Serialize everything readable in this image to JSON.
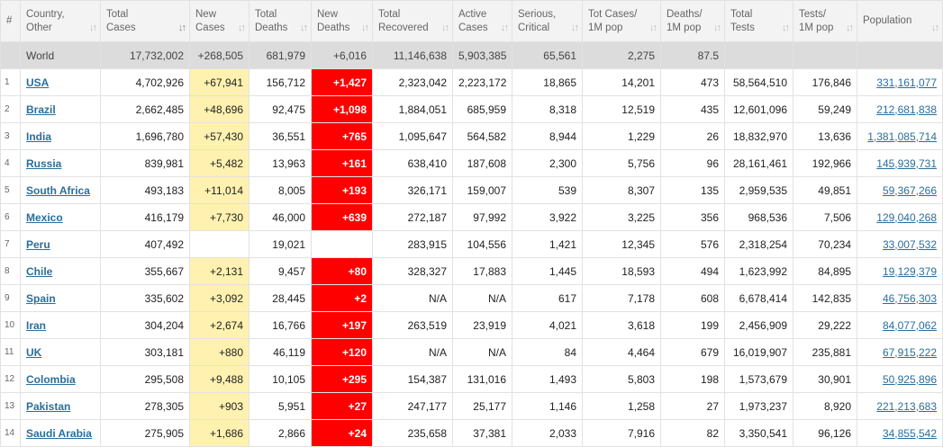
{
  "headers": [
    {
      "l1": "#",
      "l2": "",
      "sort": false
    },
    {
      "l1": "Country,",
      "l2": "Other",
      "sort": true
    },
    {
      "l1": "Total",
      "l2": "Cases",
      "sort": true,
      "active": true
    },
    {
      "l1": "New",
      "l2": "Cases",
      "sort": true
    },
    {
      "l1": "Total",
      "l2": "Deaths",
      "sort": true
    },
    {
      "l1": "New",
      "l2": "Deaths",
      "sort": true
    },
    {
      "l1": "Total",
      "l2": "Recovered",
      "sort": true
    },
    {
      "l1": "Active",
      "l2": "Cases",
      "sort": true
    },
    {
      "l1": "Serious,",
      "l2": "Critical",
      "sort": true
    },
    {
      "l1": "Tot Cases/",
      "l2": "1M pop",
      "sort": true
    },
    {
      "l1": "Deaths/",
      "l2": "1M pop",
      "sort": true
    },
    {
      "l1": "Total",
      "l2": "Tests",
      "sort": true
    },
    {
      "l1": "Tests/",
      "l2": "1M pop",
      "sort": true
    },
    {
      "l1": "Population",
      "l2": "",
      "sort": true
    }
  ],
  "world": {
    "country": "World",
    "total_cases": "17,732,002",
    "new_cases": "+268,505",
    "total_deaths": "681,979",
    "new_deaths": "+6,016",
    "total_recovered": "11,146,638",
    "active_cases": "5,903,385",
    "serious": "65,561",
    "cases_per_1m": "2,275",
    "deaths_per_1m": "87.5",
    "total_tests": "",
    "tests_per_1m": "",
    "population": ""
  },
  "rows": [
    {
      "idx": "1",
      "country": "USA",
      "total_cases": "4,702,926",
      "new_cases": "+67,941",
      "total_deaths": "156,712",
      "new_deaths": "+1,427",
      "total_recovered": "2,323,042",
      "active_cases": "2,223,172",
      "serious": "18,865",
      "cases_per_1m": "14,201",
      "deaths_per_1m": "473",
      "total_tests": "58,564,510",
      "tests_per_1m": "176,846",
      "population": "331,161,077"
    },
    {
      "idx": "2",
      "country": "Brazil",
      "total_cases": "2,662,485",
      "new_cases": "+48,696",
      "total_deaths": "92,475",
      "new_deaths": "+1,098",
      "total_recovered": "1,884,051",
      "active_cases": "685,959",
      "serious": "8,318",
      "cases_per_1m": "12,519",
      "deaths_per_1m": "435",
      "total_tests": "12,601,096",
      "tests_per_1m": "59,249",
      "population": "212,681,838"
    },
    {
      "idx": "3",
      "country": "India",
      "total_cases": "1,696,780",
      "new_cases": "+57,430",
      "total_deaths": "36,551",
      "new_deaths": "+765",
      "total_recovered": "1,095,647",
      "active_cases": "564,582",
      "serious": "8,944",
      "cases_per_1m": "1,229",
      "deaths_per_1m": "26",
      "total_tests": "18,832,970",
      "tests_per_1m": "13,636",
      "population": "1,381,085,714"
    },
    {
      "idx": "4",
      "country": "Russia",
      "total_cases": "839,981",
      "new_cases": "+5,482",
      "total_deaths": "13,963",
      "new_deaths": "+161",
      "total_recovered": "638,410",
      "active_cases": "187,608",
      "serious": "2,300",
      "cases_per_1m": "5,756",
      "deaths_per_1m": "96",
      "total_tests": "28,161,461",
      "tests_per_1m": "192,966",
      "population": "145,939,731"
    },
    {
      "idx": "5",
      "country": "South Africa",
      "total_cases": "493,183",
      "new_cases": "+11,014",
      "total_deaths": "8,005",
      "new_deaths": "+193",
      "total_recovered": "326,171",
      "active_cases": "159,007",
      "serious": "539",
      "cases_per_1m": "8,307",
      "deaths_per_1m": "135",
      "total_tests": "2,959,535",
      "tests_per_1m": "49,851",
      "population": "59,367,266"
    },
    {
      "idx": "6",
      "country": "Mexico",
      "total_cases": "416,179",
      "new_cases": "+7,730",
      "total_deaths": "46,000",
      "new_deaths": "+639",
      "total_recovered": "272,187",
      "active_cases": "97,992",
      "serious": "3,922",
      "cases_per_1m": "3,225",
      "deaths_per_1m": "356",
      "total_tests": "968,536",
      "tests_per_1m": "7,506",
      "population": "129,040,268"
    },
    {
      "idx": "7",
      "country": "Peru",
      "total_cases": "407,492",
      "new_cases": "",
      "total_deaths": "19,021",
      "new_deaths": "",
      "total_recovered": "283,915",
      "active_cases": "104,556",
      "serious": "1,421",
      "cases_per_1m": "12,345",
      "deaths_per_1m": "576",
      "total_tests": "2,318,254",
      "tests_per_1m": "70,234",
      "population": "33,007,532"
    },
    {
      "idx": "8",
      "country": "Chile",
      "total_cases": "355,667",
      "new_cases": "+2,131",
      "total_deaths": "9,457",
      "new_deaths": "+80",
      "total_recovered": "328,327",
      "active_cases": "17,883",
      "serious": "1,445",
      "cases_per_1m": "18,593",
      "deaths_per_1m": "494",
      "total_tests": "1,623,992",
      "tests_per_1m": "84,895",
      "population": "19,129,379"
    },
    {
      "idx": "9",
      "country": "Spain",
      "total_cases": "335,602",
      "new_cases": "+3,092",
      "total_deaths": "28,445",
      "new_deaths": "+2",
      "total_recovered": "N/A",
      "active_cases": "N/A",
      "serious": "617",
      "cases_per_1m": "7,178",
      "deaths_per_1m": "608",
      "total_tests": "6,678,414",
      "tests_per_1m": "142,835",
      "population": "46,756,303"
    },
    {
      "idx": "10",
      "country": "Iran",
      "total_cases": "304,204",
      "new_cases": "+2,674",
      "total_deaths": "16,766",
      "new_deaths": "+197",
      "total_recovered": "263,519",
      "active_cases": "23,919",
      "serious": "4,021",
      "cases_per_1m": "3,618",
      "deaths_per_1m": "199",
      "total_tests": "2,456,909",
      "tests_per_1m": "29,222",
      "population": "84,077,062"
    },
    {
      "idx": "11",
      "country": "UK",
      "total_cases": "303,181",
      "new_cases": "+880",
      "total_deaths": "46,119",
      "new_deaths": "+120",
      "total_recovered": "N/A",
      "active_cases": "N/A",
      "serious": "84",
      "cases_per_1m": "4,464",
      "deaths_per_1m": "679",
      "total_tests": "16,019,907",
      "tests_per_1m": "235,881",
      "population": "67,915,222"
    },
    {
      "idx": "12",
      "country": "Colombia",
      "total_cases": "295,508",
      "new_cases": "+9,488",
      "total_deaths": "10,105",
      "new_deaths": "+295",
      "total_recovered": "154,387",
      "active_cases": "131,016",
      "serious": "1,493",
      "cases_per_1m": "5,803",
      "deaths_per_1m": "198",
      "total_tests": "1,573,679",
      "tests_per_1m": "30,901",
      "population": "50,925,896"
    },
    {
      "idx": "13",
      "country": "Pakistan",
      "total_cases": "278,305",
      "new_cases": "+903",
      "total_deaths": "5,951",
      "new_deaths": "+27",
      "total_recovered": "247,177",
      "active_cases": "25,177",
      "serious": "1,146",
      "cases_per_1m": "1,258",
      "deaths_per_1m": "27",
      "total_tests": "1,973,237",
      "tests_per_1m": "8,920",
      "population": "221,213,683"
    },
    {
      "idx": "14",
      "country": "Saudi Arabia",
      "total_cases": "275,905",
      "new_cases": "+1,686",
      "total_deaths": "2,866",
      "new_deaths": "+24",
      "total_recovered": "235,658",
      "active_cases": "37,381",
      "serious": "2,033",
      "cases_per_1m": "7,916",
      "deaths_per_1m": "82",
      "total_tests": "3,350,541",
      "tests_per_1m": "96,126",
      "population": "34,855,542"
    }
  ],
  "colors": {
    "new_cases_bg": "#fff1b0",
    "new_deaths_bg": "#ff0000",
    "link": "#2b6e9a",
    "world_bg": "#dcdcdc",
    "header_bg": "#f3f3f3"
  }
}
